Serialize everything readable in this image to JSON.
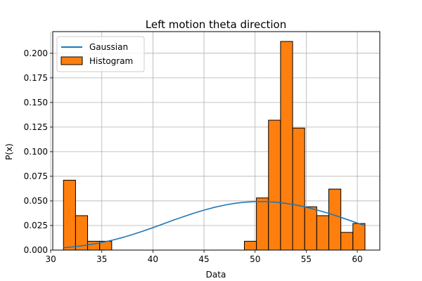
{
  "chart_data": {
    "type": "bar",
    "title": "Left motion theta direction",
    "xlabel": "Data",
    "ylabel": "P(x)",
    "xlim": [
      30.2,
      62.2
    ],
    "ylim": [
      0,
      0.222
    ],
    "grid": true,
    "legend_position": "top-left",
    "x_ticks": [
      30,
      35,
      40,
      45,
      50,
      55,
      60
    ],
    "x_tick_labels": [
      "30",
      "35",
      "40",
      "45",
      "50",
      "55",
      "60"
    ],
    "y_ticks": [
      0,
      0.025,
      0.05,
      0.075,
      0.1,
      0.125,
      0.15,
      0.175,
      0.2
    ],
    "y_tick_labels": [
      "0.000",
      "0.025",
      "0.050",
      "0.075",
      "0.100",
      "0.125",
      "0.150",
      "0.175",
      "0.200"
    ],
    "histogram": {
      "name": "Histogram",
      "color": "#ff7f0e",
      "edge_color": "#000000",
      "bin_edges": [
        31.25,
        32.43,
        33.61,
        34.79,
        35.97,
        37.15,
        38.33,
        39.51,
        40.69,
        41.87,
        43.05,
        44.23,
        45.41,
        46.59,
        47.77,
        48.95,
        50.13,
        51.31,
        52.49,
        53.67,
        54.85,
        56.03,
        57.21,
        58.39,
        59.57,
        60.75
      ],
      "densities": [
        0.071,
        0.035,
        0.009,
        0.009,
        0,
        0,
        0,
        0,
        0,
        0,
        0,
        0,
        0,
        0,
        0,
        0.009,
        0.053,
        0.132,
        0.212,
        0.124,
        0.044,
        0.035,
        0.062,
        0.018,
        0.027
      ]
    },
    "gaussian": {
      "name": "Gaussian",
      "color": "#1f77b4",
      "x": [
        31.25,
        32.0,
        33.0,
        34.0,
        35.0,
        36.0,
        37.0,
        38.0,
        39.0,
        40.0,
        41.0,
        42.0,
        43.0,
        44.0,
        45.0,
        46.0,
        47.0,
        48.0,
        49.0,
        50.0,
        51.0,
        52.0,
        53.0,
        54.0,
        55.0,
        56.0,
        57.0,
        58.0,
        59.0,
        60.0,
        60.75
      ],
      "y": [
        0.0024,
        0.0031,
        0.0043,
        0.0058,
        0.0077,
        0.01,
        0.0127,
        0.0158,
        0.0192,
        0.0228,
        0.0266,
        0.0304,
        0.034,
        0.0375,
        0.0406,
        0.0434,
        0.0457,
        0.0475,
        0.0487,
        0.0493,
        0.0493,
        0.0487,
        0.0475,
        0.0458,
        0.0436,
        0.0409,
        0.0379,
        0.0346,
        0.0311,
        0.0275,
        0.0248
      ]
    }
  }
}
